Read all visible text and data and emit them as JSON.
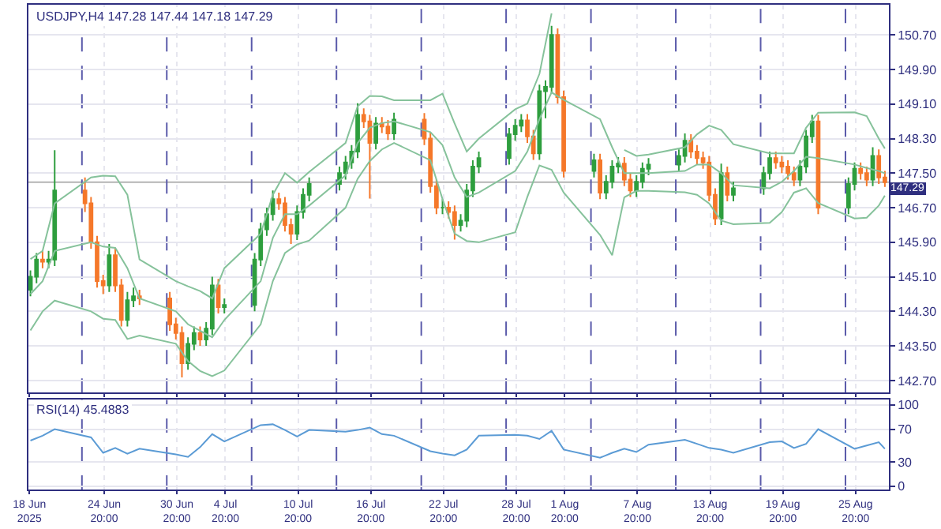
{
  "chart_data": [
    {
      "type": "candlestick",
      "title": "USDJPY,H4 147.28 147.44 147.18 147.29",
      "x": [
        "2025-06-18T18:00",
        "2025-06-19T06:00",
        "2025-06-19T18:00",
        "2025-06-20T06:00",
        "2025-06-20T18:00",
        "2025-06-23T06:00",
        "2025-06-23T18:00",
        "2025-06-24T06:00",
        "2025-06-24T18:00",
        "2025-06-25T06:00",
        "2025-06-25T18:00",
        "2025-06-26T06:00",
        "2025-06-26T18:00",
        "2025-06-27T06:00",
        "2025-06-27T18:00",
        "2025-06-30T06:00",
        "2025-06-30T18:00",
        "2025-07-01T06:00",
        "2025-07-01T18:00",
        "2025-07-02T06:00",
        "2025-07-02T18:00",
        "2025-07-03T06:00",
        "2025-07-03T18:00",
        "2025-07-04T06:00",
        "2025-07-04T18:00",
        "2025-07-07T06:00",
        "2025-07-07T18:00",
        "2025-07-08T06:00",
        "2025-07-08T18:00",
        "2025-07-09T06:00",
        "2025-07-09T18:00",
        "2025-07-10T06:00",
        "2025-07-10T18:00",
        "2025-07-11T06:00",
        "2025-07-11T18:00",
        "2025-07-14T06:00",
        "2025-07-14T18:00",
        "2025-07-15T06:00",
        "2025-07-15T18:00",
        "2025-07-16T06:00",
        "2025-07-16T18:00",
        "2025-07-17T06:00",
        "2025-07-17T18:00",
        "2025-07-18T06:00",
        "2025-07-18T18:00",
        "2025-07-21T06:00",
        "2025-07-21T18:00",
        "2025-07-22T06:00",
        "2025-07-22T18:00",
        "2025-07-23T06:00",
        "2025-07-23T18:00",
        "2025-07-24T06:00",
        "2025-07-24T18:00",
        "2025-07-25T06:00",
        "2025-07-25T18:00",
        "2025-07-28T06:00",
        "2025-07-28T18:00",
        "2025-07-29T06:00",
        "2025-07-29T18:00",
        "2025-07-30T06:00",
        "2025-07-30T18:00",
        "2025-07-31T06:00",
        "2025-07-31T18:00",
        "2025-08-01T06:00",
        "2025-08-01T18:00",
        "2025-08-04T06:00",
        "2025-08-04T18:00",
        "2025-08-05T06:00",
        "2025-08-05T18:00",
        "2025-08-06T06:00",
        "2025-08-06T18:00",
        "2025-08-07T06:00",
        "2025-08-07T18:00",
        "2025-08-08T06:00",
        "2025-08-08T18:00",
        "2025-08-11T06:00",
        "2025-08-11T18:00",
        "2025-08-12T06:00",
        "2025-08-12T18:00",
        "2025-08-13T06:00",
        "2025-08-13T18:00",
        "2025-08-14T06:00",
        "2025-08-14T18:00",
        "2025-08-15T06:00",
        "2025-08-15T18:00",
        "2025-08-18T06:00",
        "2025-08-18T18:00",
        "2025-08-19T06:00",
        "2025-08-19T18:00",
        "2025-08-20T06:00",
        "2025-08-20T18:00",
        "2025-08-21T06:00",
        "2025-08-21T18:00",
        "2025-08-22T06:00",
        "2025-08-22T18:00",
        "2025-08-25T06:00",
        "2025-08-25T18:00",
        "2025-08-26T06:00",
        "2025-08-26T18:00",
        "2025-08-27T06:00",
        "2025-08-27T18:00",
        "2025-08-28T06:00"
      ],
      "ohlc": [
        [
          144.8,
          145.25,
          144.65,
          145.1
        ],
        [
          145.1,
          145.65,
          144.95,
          145.5
        ],
        [
          145.5,
          145.7,
          145.3,
          145.45
        ],
        [
          145.45,
          145.7,
          145.3,
          145.5
        ],
        [
          145.5,
          148.03,
          145.35,
          147.1
        ],
        [
          147.1,
          147.4,
          146.6,
          146.8
        ],
        [
          146.8,
          146.95,
          145.75,
          145.9
        ],
        [
          145.9,
          146.05,
          144.85,
          145.0
        ],
        [
          145.0,
          145.15,
          144.7,
          144.9
        ],
        [
          144.9,
          145.86,
          144.75,
          145.6
        ],
        [
          145.6,
          145.75,
          144.75,
          144.9
        ],
        [
          144.9,
          145.05,
          143.95,
          144.1
        ],
        [
          144.1,
          144.75,
          143.95,
          144.56
        ],
        [
          144.56,
          144.85,
          144.4,
          144.65
        ],
        [
          144.65,
          144.8,
          144.45,
          144.6
        ],
        [
          144.6,
          144.75,
          143.85,
          144.0
        ],
        [
          144.0,
          144.15,
          143.65,
          143.8
        ],
        [
          143.8,
          143.95,
          142.77,
          143.1
        ],
        [
          143.1,
          143.7,
          142.95,
          143.55
        ],
        [
          143.55,
          143.95,
          143.4,
          143.8
        ],
        [
          143.8,
          143.95,
          143.5,
          143.65
        ],
        [
          143.65,
          144.05,
          143.5,
          143.9
        ],
        [
          143.9,
          145.1,
          143.75,
          144.9
        ],
        [
          144.9,
          145.05,
          144.25,
          144.4
        ],
        [
          144.4,
          144.6,
          144.25,
          144.45
        ],
        [
          144.45,
          145.65,
          144.3,
          145.5
        ],
        [
          145.5,
          146.35,
          145.35,
          146.2
        ],
        [
          146.2,
          146.7,
          146.05,
          146.55
        ],
        [
          146.55,
          147.1,
          146.4,
          146.9
        ],
        [
          146.9,
          147.05,
          146.65,
          146.8
        ],
        [
          146.8,
          146.95,
          146.15,
          146.3
        ],
        [
          146.3,
          146.45,
          145.86,
          146.1
        ],
        [
          146.1,
          146.75,
          145.95,
          146.6
        ],
        [
          146.6,
          147.15,
          146.45,
          147.0
        ],
        [
          147.0,
          147.4,
          146.85,
          147.25
        ],
        [
          147.25,
          147.65,
          147.1,
          147.5
        ],
        [
          147.5,
          147.9,
          147.35,
          147.75
        ],
        [
          147.75,
          148.15,
          147.6,
          148.0
        ],
        [
          148.0,
          149.12,
          147.85,
          148.85
        ],
        [
          148.85,
          149.0,
          148.55,
          148.7
        ],
        [
          148.7,
          148.85,
          146.91,
          148.2
        ],
        [
          148.2,
          148.8,
          148.05,
          148.65
        ],
        [
          148.65,
          148.8,
          148.43,
          148.58
        ],
        [
          148.58,
          148.73,
          148.27,
          148.42
        ],
        [
          148.42,
          148.9,
          148.27,
          148.74
        ],
        [
          148.74,
          148.89,
          148.15,
          148.3
        ],
        [
          148.3,
          148.45,
          147.05,
          147.2
        ],
        [
          147.2,
          147.35,
          146.55,
          146.7
        ],
        [
          146.7,
          146.9,
          146.55,
          146.7
        ],
        [
          146.7,
          146.85,
          146.45,
          146.6
        ],
        [
          146.6,
          146.75,
          145.96,
          146.3
        ],
        [
          146.3,
          146.55,
          146.15,
          146.4
        ],
        [
          146.4,
          147.25,
          146.25,
          147.1
        ],
        [
          147.1,
          147.8,
          146.95,
          147.65
        ],
        [
          147.65,
          148.0,
          147.5,
          147.85
        ],
        [
          147.85,
          148.55,
          147.7,
          148.4
        ],
        [
          148.4,
          148.75,
          148.25,
          148.6
        ],
        [
          148.6,
          148.87,
          148.45,
          148.72
        ],
        [
          148.72,
          148.87,
          148.2,
          148.35
        ],
        [
          148.35,
          148.5,
          147.81,
          147.96
        ],
        [
          147.96,
          149.55,
          147.81,
          149.4
        ],
        [
          149.4,
          149.65,
          148.77,
          149.5
        ],
        [
          149.5,
          150.91,
          149.35,
          150.7
        ],
        [
          150.7,
          150.85,
          149.11,
          149.26
        ],
        [
          149.26,
          149.41,
          147.4,
          147.55
        ],
        [
          147.55,
          147.95,
          147.4,
          147.8
        ],
        [
          147.8,
          147.95,
          146.9,
          147.05
        ],
        [
          147.05,
          147.45,
          146.9,
          147.3
        ],
        [
          147.3,
          147.8,
          147.15,
          147.65
        ],
        [
          147.65,
          147.87,
          147.5,
          147.72
        ],
        [
          147.72,
          147.87,
          147.2,
          147.35
        ],
        [
          147.35,
          147.5,
          146.95,
          147.1
        ],
        [
          147.1,
          147.45,
          146.95,
          147.3
        ],
        [
          147.3,
          147.75,
          147.15,
          147.6
        ],
        [
          147.6,
          147.85,
          147.45,
          147.7
        ],
        [
          147.7,
          148.05,
          147.55,
          147.9
        ],
        [
          147.9,
          148.42,
          147.75,
          148.25
        ],
        [
          148.25,
          148.4,
          147.85,
          148.0
        ],
        [
          148.0,
          148.15,
          147.7,
          147.85
        ],
        [
          147.85,
          148.0,
          147.6,
          147.75
        ],
        [
          147.75,
          147.9,
          146.85,
          147.0
        ],
        [
          147.0,
          147.15,
          146.3,
          146.45
        ],
        [
          146.45,
          147.72,
          146.3,
          147.5
        ],
        [
          147.5,
          147.65,
          146.85,
          147.0
        ],
        [
          147.0,
          147.3,
          146.85,
          147.15
        ],
        [
          147.15,
          147.65,
          147.0,
          147.5
        ],
        [
          147.5,
          148.0,
          147.35,
          147.85
        ],
        [
          147.85,
          148.0,
          147.6,
          147.75
        ],
        [
          147.75,
          147.9,
          147.5,
          147.65
        ],
        [
          147.65,
          147.8,
          147.35,
          147.5
        ],
        [
          147.5,
          147.65,
          147.2,
          147.35
        ],
        [
          147.35,
          147.8,
          147.2,
          147.65
        ],
        [
          147.65,
          148.5,
          147.5,
          148.35
        ],
        [
          148.35,
          148.85,
          148.2,
          148.7
        ],
        [
          148.7,
          148.85,
          146.55,
          146.7
        ],
        [
          146.7,
          147.4,
          146.55,
          147.25
        ],
        [
          147.25,
          147.75,
          147.1,
          147.6
        ],
        [
          147.6,
          147.75,
          147.35,
          147.5
        ],
        [
          147.5,
          147.65,
          147.2,
          147.35
        ],
        [
          147.35,
          148.1,
          147.2,
          147.9
        ],
        [
          147.9,
          148.05,
          147.25,
          147.4
        ],
        [
          147.4,
          147.55,
          147.18,
          147.29
        ]
      ],
      "colors": [
        "#2e9e3e",
        "#2e9e3e",
        "#f5782a",
        "#2e9e3e",
        "#2e9e3e",
        "#f5782a",
        "#f5782a",
        "#f5782a",
        "#f5782a",
        "#2e9e3e",
        "#f5782a",
        "#f5782a",
        "#2e9e3e",
        "#2e9e3e",
        "#f5782a",
        "#f5782a",
        "#f5782a",
        "#f5782a",
        "#2e9e3e",
        "#2e9e3e",
        "#f5782a",
        "#2e9e3e",
        "#2e9e3e",
        "#f5782a",
        "#2e9e3e",
        "#2e9e3e",
        "#2e9e3e",
        "#2e9e3e",
        "#2e9e3e",
        "#f5782a",
        "#f5782a",
        "#f5782a",
        "#2e9e3e",
        "#2e9e3e",
        "#2e9e3e",
        "#2e9e3e",
        "#2e9e3e",
        "#2e9e3e",
        "#2e9e3e",
        "#f5782a",
        "#f5782a",
        "#2e9e3e",
        "#f5782a",
        "#f5782a",
        "#2e9e3e",
        "#f5782a",
        "#f5782a",
        "#f5782a",
        "#2e9e3e",
        "#f5782a",
        "#f5782a",
        "#2e9e3e",
        "#2e9e3e",
        "#2e9e3e",
        "#2e9e3e",
        "#2e9e3e",
        "#2e9e3e",
        "#2e9e3e",
        "#f5782a",
        "#f5782a",
        "#2e9e3e",
        "#2e9e3e",
        "#2e9e3e",
        "#f5782a",
        "#f5782a",
        "#2e9e3e",
        "#f5782a",
        "#2e9e3e",
        "#2e9e3e",
        "#2e9e3e",
        "#f5782a",
        "#f5782a",
        "#2e9e3e",
        "#2e9e3e",
        "#2e9e3e",
        "#2e9e3e",
        "#2e9e3e",
        "#f5782a",
        "#f5782a",
        "#f5782a",
        "#f5782a",
        "#f5782a",
        "#2e9e3e",
        "#f5782a",
        "#2e9e3e",
        "#2e9e3e",
        "#2e9e3e",
        "#f5782a",
        "#f5782a",
        "#f5782a",
        "#f5782a",
        "#2e9e3e",
        "#2e9e3e",
        "#2e9e3e",
        "#f5782a",
        "#2e9e3e",
        "#2e9e3e",
        "#f5782a",
        "#f5782a",
        "#2e9e3e",
        "#f5782a",
        "#f5782a"
      ],
      "series": [
        {
          "type": "line",
          "color": "#86c29b",
          "x": [
            "2025-06-18T18:00",
            "2025-06-19T18:00",
            "2025-06-20T18:00",
            "2025-06-23T18:00",
            "2025-06-24T18:00",
            "2025-06-25T18:00",
            "2025-06-26T18:00",
            "2025-06-27T18:00",
            "2025-06-30T18:00",
            "2025-07-01T18:00",
            "2025-07-02T18:00",
            "2025-07-03T18:00",
            "2025-07-04T18:00",
            "2025-07-07T18:00",
            "2025-07-08T18:00",
            "2025-07-09T18:00",
            "2025-07-10T18:00",
            "2025-07-11T18:00",
            "2025-07-14T18:00",
            "2025-07-15T18:00",
            "2025-07-16T18:00",
            "2025-07-17T18:00",
            "2025-07-18T18:00",
            "2025-07-21T18:00",
            "2025-07-22T18:00",
            "2025-07-23T18:00",
            "2025-07-24T18:00",
            "2025-07-25T18:00",
            "2025-07-28T18:00",
            "2025-07-29T18:00",
            "2025-07-30T18:00",
            "2025-07-31T18:00",
            "2025-08-01T18:00",
            "2025-08-04T18:00",
            "2025-08-05T18:00",
            "2025-08-06T18:00",
            "2025-08-07T18:00",
            "2025-08-08T18:00",
            "2025-08-11T18:00",
            "2025-08-12T18:00",
            "2025-08-13T18:00",
            "2025-08-14T18:00",
            "2025-08-15T18:00",
            "2025-08-18T18:00",
            "2025-08-19T18:00",
            "2025-08-20T18:00",
            "2025-08-21T18:00",
            "2025-08-22T18:00",
            "2025-08-25T18:00",
            "2025-08-26T18:00",
            "2025-08-27T18:00",
            "2025-08-28T06:00"
          ],
          "values": [
            145.51,
            145.7,
            146.8,
            147.4,
            147.44,
            147.43,
            147.0,
            145.5,
            145.0,
            144.88,
            144.77,
            144.6,
            145.3,
            146.1,
            147.0,
            147.5,
            147.28,
            147.53,
            148.2,
            149.05,
            149.29,
            149.28,
            149.19,
            149.19,
            149.34,
            148.65,
            148.0,
            148.3,
            148.98,
            149.11,
            149.8,
            151.2,
            null,
            null,
            null,
            148.04,
            147.9,
            147.93,
            148.1,
            148.4,
            148.6,
            148.5,
            148.17,
            147.96,
            147.96,
            147.96,
            148.55,
            148.9,
            148.91,
            148.82,
            148.3,
            148.07
          ]
        },
        {
          "type": "line",
          "color": "#86c29b",
          "x": [
            "2025-06-18T18:00",
            "2025-06-19T18:00",
            "2025-06-20T18:00",
            "2025-06-23T18:00",
            "2025-06-24T18:00",
            "2025-06-25T18:00",
            "2025-06-26T18:00",
            "2025-06-27T18:00",
            "2025-06-30T18:00",
            "2025-07-01T18:00",
            "2025-07-02T18:00",
            "2025-07-03T18:00",
            "2025-07-04T18:00",
            "2025-07-07T18:00",
            "2025-07-08T18:00",
            "2025-07-09T18:00",
            "2025-07-10T18:00",
            "2025-07-11T18:00",
            "2025-07-14T18:00",
            "2025-07-15T18:00",
            "2025-07-16T18:00",
            "2025-07-17T18:00",
            "2025-07-18T18:00",
            "2025-07-21T18:00",
            "2025-07-22T18:00",
            "2025-07-23T18:00",
            "2025-07-24T18:00",
            "2025-07-25T18:00",
            "2025-07-28T18:00",
            "2025-07-29T18:00",
            "2025-07-30T18:00",
            "2025-07-31T18:00",
            "2025-08-01T18:00",
            "2025-08-04T18:00",
            "2025-08-05T18:00",
            "2025-08-06T18:00",
            "2025-08-07T18:00",
            "2025-08-08T18:00",
            "2025-08-11T18:00",
            "2025-08-12T18:00",
            "2025-08-13T18:00",
            "2025-08-14T18:00",
            "2025-08-15T18:00",
            "2025-08-18T18:00",
            "2025-08-19T18:00",
            "2025-08-20T18:00",
            "2025-08-21T18:00",
            "2025-08-22T18:00",
            "2025-08-25T18:00",
            "2025-08-26T18:00",
            "2025-08-27T18:00",
            "2025-08-28T06:00"
          ],
          "values": [
            144.7,
            145.0,
            145.7,
            145.9,
            145.8,
            145.77,
            145.3,
            144.6,
            144.3,
            144.0,
            143.85,
            143.7,
            144.1,
            145.0,
            146.0,
            146.55,
            146.55,
            146.75,
            147.45,
            148.2,
            148.55,
            148.66,
            148.7,
            148.45,
            148.15,
            147.4,
            146.95,
            147.05,
            147.55,
            148.0,
            148.75,
            149.37,
            149.2,
            148.75,
            148.1,
            147.5,
            147.5,
            147.5,
            147.55,
            147.7,
            147.7,
            147.5,
            147.22,
            147.15,
            147.3,
            147.55,
            147.88,
            147.85,
            147.7,
            147.62,
            147.55,
            147.5
          ]
        },
        {
          "type": "line",
          "color": "#86c29b",
          "x": [
            "2025-06-18T18:00",
            "2025-06-19T18:00",
            "2025-06-20T18:00",
            "2025-06-23T18:00",
            "2025-06-24T18:00",
            "2025-06-25T18:00",
            "2025-06-26T18:00",
            "2025-06-27T18:00",
            "2025-06-30T18:00",
            "2025-07-01T18:00",
            "2025-07-02T18:00",
            "2025-07-03T18:00",
            "2025-07-04T18:00",
            "2025-07-07T18:00",
            "2025-07-08T18:00",
            "2025-07-09T18:00",
            "2025-07-10T18:00",
            "2025-07-11T18:00",
            "2025-07-14T18:00",
            "2025-07-15T18:00",
            "2025-07-16T18:00",
            "2025-07-17T18:00",
            "2025-07-18T18:00",
            "2025-07-21T18:00",
            "2025-07-22T18:00",
            "2025-07-23T18:00",
            "2025-07-24T18:00",
            "2025-07-25T18:00",
            "2025-07-28T18:00",
            "2025-07-29T18:00",
            "2025-07-30T18:00",
            "2025-07-31T18:00",
            "2025-08-01T18:00",
            "2025-08-04T18:00",
            "2025-08-05T18:00",
            "2025-08-06T18:00",
            "2025-08-07T18:00",
            "2025-08-08T18:00",
            "2025-08-11T18:00",
            "2025-08-12T18:00",
            "2025-08-13T18:00",
            "2025-08-14T18:00",
            "2025-08-15T18:00",
            "2025-08-18T18:00",
            "2025-08-19T18:00",
            "2025-08-20T18:00",
            "2025-08-21T18:00",
            "2025-08-22T18:00",
            "2025-08-25T18:00",
            "2025-08-26T18:00",
            "2025-08-27T18:00",
            "2025-08-28T06:00"
          ],
          "values": [
            143.86,
            144.3,
            144.55,
            144.3,
            144.13,
            144.1,
            143.66,
            143.74,
            143.55,
            143.15,
            142.92,
            142.8,
            142.93,
            144.0,
            145.0,
            145.65,
            145.85,
            145.94,
            146.7,
            147.37,
            147.78,
            148.05,
            148.2,
            147.8,
            146.9,
            146.1,
            145.93,
            145.9,
            146.13,
            146.95,
            147.68,
            147.58,
            147.05,
            146.07,
            145.6,
            146.94,
            147.09,
            147.09,
            147.06,
            147.0,
            146.8,
            146.4,
            146.32,
            146.35,
            146.6,
            147.05,
            147.15,
            146.81,
            146.45,
            146.47,
            146.75,
            146.98
          ]
        }
      ],
      "xlim": [
        "2025-06-18T14:00",
        "2025-08-28T14:00"
      ],
      "xticks": [
        "2025-06-18T16:00",
        "2025-06-24T20:00",
        "2025-06-30T20:00",
        "2025-07-04T20:00",
        "2025-07-10T20:00",
        "2025-07-16T20:00",
        "2025-07-22T20:00",
        "2025-07-28T20:00",
        "2025-08-01T20:00",
        "2025-08-07T20:00",
        "2025-08-13T20:00",
        "2025-08-19T20:00",
        "2025-08-25T20:00"
      ],
      "ylim": [
        142.42,
        151.4
      ],
      "yticks": [
        {
          "value": 142.7,
          "label": "142.70"
        },
        {
          "value": 143.5,
          "label": "143.50"
        },
        {
          "value": 144.3,
          "label": "144.30"
        },
        {
          "value": 145.1,
          "label": "145.10"
        },
        {
          "value": 145.9,
          "label": "145.90"
        },
        {
          "value": 146.7,
          "label": "146.70"
        },
        {
          "value": 147.5,
          "label": "147.50"
        },
        {
          "value": 148.3,
          "label": "148.30"
        },
        {
          "value": 149.1,
          "label": "149.10"
        },
        {
          "value": 149.9,
          "label": "149.90"
        },
        {
          "value": 150.7,
          "label": "150.70"
        }
      ],
      "ref_lines": [
        {
          "axis": "y",
          "value": 147.29,
          "label": "147.29",
          "color": "#b4b4b4"
        },
        {
          "axis": "x",
          "value": "2025-06-23T00:00",
          "line_style": "dashed",
          "color": "#5a5aaa"
        },
        {
          "axis": "x",
          "value": "2025-06-30T00:00",
          "line_style": "dashed",
          "color": "#5a5aaa"
        },
        {
          "axis": "x",
          "value": "2025-07-07T00:00",
          "line_style": "dashed",
          "color": "#5a5aaa"
        },
        {
          "axis": "x",
          "value": "2025-07-14T00:00",
          "line_style": "dashed",
          "color": "#5a5aaa"
        },
        {
          "axis": "x",
          "value": "2025-07-21T00:00",
          "line_style": "dashed",
          "color": "#5a5aaa"
        },
        {
          "axis": "x",
          "value": "2025-07-28T00:00",
          "line_style": "dashed",
          "color": "#5a5aaa"
        },
        {
          "axis": "x",
          "value": "2025-08-04T00:00",
          "line_style": "dashed",
          "color": "#5a5aaa"
        },
        {
          "axis": "x",
          "value": "2025-08-11T00:00",
          "line_style": "dashed",
          "color": "#5a5aaa"
        },
        {
          "axis": "x",
          "value": "2025-08-18T00:00",
          "line_style": "dashed",
          "color": "#5a5aaa"
        },
        {
          "axis": "x",
          "value": "2025-08-25T00:00",
          "line_style": "dashed",
          "color": "#5a5aaa"
        }
      ],
      "grid": true,
      "tick_labels": "y"
    },
    {
      "type": "line",
      "title": "RSI(14) 45.4883",
      "color": "#5b9bd5",
      "x": [
        "2025-06-18T18:00",
        "2025-06-19T18:00",
        "2025-06-20T18:00",
        "2025-06-23T18:00",
        "2025-06-24T18:00",
        "2025-06-25T18:00",
        "2025-06-26T18:00",
        "2025-06-27T18:00",
        "2025-06-30T18:00",
        "2025-07-01T18:00",
        "2025-07-02T18:00",
        "2025-07-03T18:00",
        "2025-07-04T18:00",
        "2025-07-07T18:00",
        "2025-07-08T18:00",
        "2025-07-09T18:00",
        "2025-07-10T18:00",
        "2025-07-11T18:00",
        "2025-07-14T18:00",
        "2025-07-15T18:00",
        "2025-07-16T18:00",
        "2025-07-17T18:00",
        "2025-07-18T18:00",
        "2025-07-21T18:00",
        "2025-07-22T18:00",
        "2025-07-23T18:00",
        "2025-07-24T18:00",
        "2025-07-25T18:00",
        "2025-07-28T18:00",
        "2025-07-29T18:00",
        "2025-07-30T18:00",
        "2025-07-31T18:00",
        "2025-08-01T18:00",
        "2025-08-04T18:00",
        "2025-08-05T18:00",
        "2025-08-06T18:00",
        "2025-08-07T18:00",
        "2025-08-08T18:00",
        "2025-08-11T18:00",
        "2025-08-12T18:00",
        "2025-08-13T18:00",
        "2025-08-14T18:00",
        "2025-08-15T18:00",
        "2025-08-18T18:00",
        "2025-08-19T18:00",
        "2025-08-20T18:00",
        "2025-08-21T18:00",
        "2025-08-22T18:00",
        "2025-08-25T18:00",
        "2025-08-26T18:00",
        "2025-08-27T18:00",
        "2025-08-28T06:00"
      ],
      "values": [
        56,
        62,
        70,
        60,
        41,
        47,
        40,
        46,
        39,
        36,
        48,
        64,
        55,
        75,
        76,
        69,
        61,
        69,
        67,
        69,
        72,
        64,
        62,
        43,
        40,
        38,
        45,
        62,
        63,
        62,
        58,
        68,
        45,
        35,
        41,
        46,
        42,
        51,
        57,
        52,
        47,
        45,
        41,
        54,
        55,
        47,
        52,
        70,
        46,
        50,
        54,
        46
      ],
      "xlim": [
        "2025-06-18T14:00",
        "2025-08-28T14:00"
      ],
      "xticks": [
        {
          "value": "2025-06-18T16:00",
          "label": "18 Jun 2025"
        },
        {
          "value": "2025-06-24T20:00",
          "label": "24 Jun 20:00"
        },
        {
          "value": "2025-06-30T20:00",
          "label": "30 Jun 20:00"
        },
        {
          "value": "2025-07-04T20:00",
          "label": "4 Jul 20:00"
        },
        {
          "value": "2025-07-10T20:00",
          "label": "10 Jul 20:00"
        },
        {
          "value": "2025-07-16T20:00",
          "label": "16 Jul 20:00"
        },
        {
          "value": "2025-07-22T20:00",
          "label": "22 Jul 20:00"
        },
        {
          "value": "2025-07-28T20:00",
          "label": "28 Jul 20:00"
        },
        {
          "value": "2025-08-01T20:00",
          "label": "1 Aug 20:00"
        },
        {
          "value": "2025-08-07T20:00",
          "label": "7 Aug 20:00"
        },
        {
          "value": "2025-08-13T20:00",
          "label": "13 Aug 20:00"
        },
        {
          "value": "2025-08-19T20:00",
          "label": "19 Aug 20:00"
        },
        {
          "value": "2025-08-25T20:00",
          "label": "25 Aug 20:00"
        }
      ],
      "ylim": [
        -4,
        106
      ],
      "yticks": [
        0,
        30,
        70,
        100
      ],
      "ref_lines": [
        {
          "axis": "x",
          "value": "2025-06-23T00:00",
          "line_style": "dashed",
          "color": "#5a5aaa"
        },
        {
          "axis": "x",
          "value": "2025-06-30T00:00",
          "line_style": "dashed",
          "color": "#5a5aaa"
        },
        {
          "axis": "x",
          "value": "2025-07-07T00:00",
          "line_style": "dashed",
          "color": "#5a5aaa"
        },
        {
          "axis": "x",
          "value": "2025-07-14T00:00",
          "line_style": "dashed",
          "color": "#5a5aaa"
        },
        {
          "axis": "x",
          "value": "2025-07-21T00:00",
          "line_style": "dashed",
          "color": "#5a5aaa"
        },
        {
          "axis": "x",
          "value": "2025-07-28T00:00",
          "line_style": "dashed",
          "color": "#5a5aaa"
        },
        {
          "axis": "x",
          "value": "2025-08-04T00:00",
          "line_style": "dashed",
          "color": "#5a5aaa"
        },
        {
          "axis": "x",
          "value": "2025-08-11T00:00",
          "line_style": "dashed",
          "color": "#5a5aaa"
        },
        {
          "axis": "x",
          "value": "2025-08-18T00:00",
          "line_style": "dashed",
          "color": "#5a5aaa"
        },
        {
          "axis": "x",
          "value": "2025-08-25T00:00",
          "line_style": "dashed",
          "color": "#5a5aaa"
        }
      ],
      "grid": true
    }
  ]
}
